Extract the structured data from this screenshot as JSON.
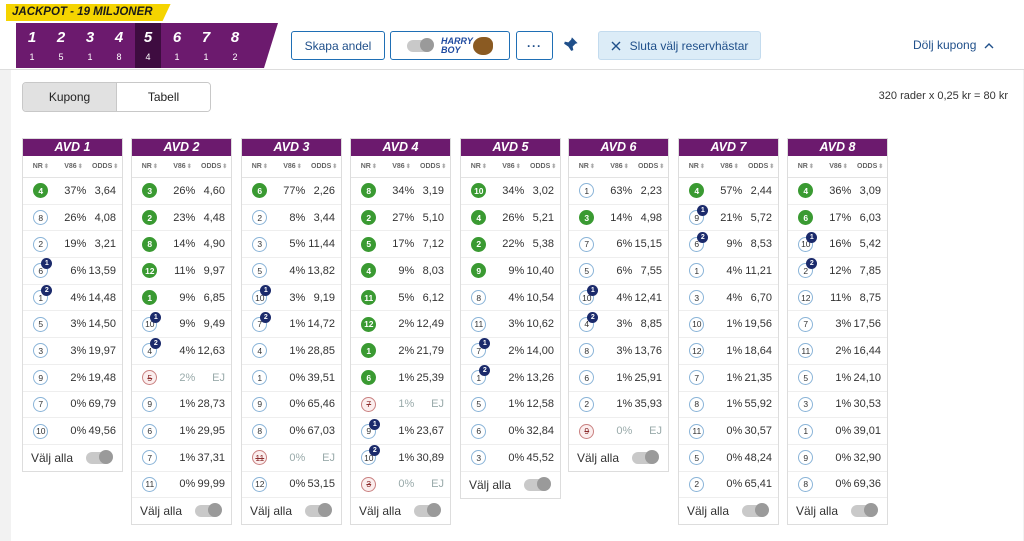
{
  "jackpot": "JACKPOT - 19 MILJONER",
  "legs": [
    {
      "num": "1",
      "count": "1"
    },
    {
      "num": "2",
      "count": "5"
    },
    {
      "num": "3",
      "count": "1"
    },
    {
      "num": "4",
      "count": "8"
    },
    {
      "num": "5",
      "count": "4",
      "active": true
    },
    {
      "num": "6",
      "count": "1"
    },
    {
      "num": "7",
      "count": "1"
    },
    {
      "num": "8",
      "count": "2"
    }
  ],
  "header": {
    "share_label": "Skapa andel",
    "harry_label": "HARRY BOY",
    "more_label": "···",
    "reserve_label": "Sluta välj reservhästar",
    "hide_label": "Dölj kupong"
  },
  "tabs": [
    "Kupong",
    "Tabell"
  ],
  "rows_info": "320 rader x 0,25 kr = 80 kr",
  "col_headers": {
    "nr": "NR",
    "v86": "V86",
    "odds": "ODDS"
  },
  "select_all": "Välj alla",
  "avds": [
    {
      "title": "AVD 1",
      "rows": [
        {
          "nr": "4",
          "pct": "37%",
          "odds": "3,64",
          "sel": true
        },
        {
          "nr": "8",
          "pct": "26%",
          "odds": "4,08"
        },
        {
          "nr": "2",
          "pct": "19%",
          "odds": "3,21"
        },
        {
          "nr": "6",
          "pct": "6%",
          "odds": "13,59",
          "badge": "1"
        },
        {
          "nr": "1",
          "pct": "4%",
          "odds": "14,48",
          "badge": "2"
        },
        {
          "nr": "5",
          "pct": "3%",
          "odds": "14,50"
        },
        {
          "nr": "3",
          "pct": "3%",
          "odds": "19,97"
        },
        {
          "nr": "9",
          "pct": "2%",
          "odds": "19,48"
        },
        {
          "nr": "7",
          "pct": "0%",
          "odds": "69,79"
        },
        {
          "nr": "10",
          "pct": "0%",
          "odds": "49,56"
        }
      ]
    },
    {
      "title": "AVD 2",
      "rows": [
        {
          "nr": "3",
          "pct": "26%",
          "odds": "4,60",
          "sel": true
        },
        {
          "nr": "2",
          "pct": "23%",
          "odds": "4,48",
          "sel": true
        },
        {
          "nr": "8",
          "pct": "14%",
          "odds": "4,90",
          "sel": true
        },
        {
          "nr": "12",
          "pct": "11%",
          "odds": "9,97",
          "sel": true
        },
        {
          "nr": "1",
          "pct": "9%",
          "odds": "6,85",
          "sel": true
        },
        {
          "nr": "10",
          "pct": "9%",
          "odds": "9,49",
          "badge": "1"
        },
        {
          "nr": "4",
          "pct": "4%",
          "odds": "12,63",
          "badge": "2"
        },
        {
          "nr": "5",
          "pct": "2%",
          "odds": "EJ",
          "scr": true
        },
        {
          "nr": "9",
          "pct": "1%",
          "odds": "28,73"
        },
        {
          "nr": "6",
          "pct": "1%",
          "odds": "29,95"
        },
        {
          "nr": "7",
          "pct": "1%",
          "odds": "37,31"
        },
        {
          "nr": "11",
          "pct": "0%",
          "odds": "99,99"
        }
      ]
    },
    {
      "title": "AVD 3",
      "rows": [
        {
          "nr": "6",
          "pct": "77%",
          "odds": "2,26",
          "sel": true
        },
        {
          "nr": "2",
          "pct": "8%",
          "odds": "3,44"
        },
        {
          "nr": "3",
          "pct": "5%",
          "odds": "11,44"
        },
        {
          "nr": "5",
          "pct": "4%",
          "odds": "13,82"
        },
        {
          "nr": "10",
          "pct": "3%",
          "odds": "9,19",
          "badge": "1"
        },
        {
          "nr": "7",
          "pct": "1%",
          "odds": "14,72",
          "badge": "2"
        },
        {
          "nr": "4",
          "pct": "1%",
          "odds": "28,85"
        },
        {
          "nr": "1",
          "pct": "0%",
          "odds": "39,51"
        },
        {
          "nr": "9",
          "pct": "0%",
          "odds": "65,46"
        },
        {
          "nr": "8",
          "pct": "0%",
          "odds": "67,03"
        },
        {
          "nr": "11",
          "pct": "0%",
          "odds": "EJ",
          "scr": true
        },
        {
          "nr": "12",
          "pct": "0%",
          "odds": "53,15"
        }
      ]
    },
    {
      "title": "AVD 4",
      "rows": [
        {
          "nr": "8",
          "pct": "34%",
          "odds": "3,19",
          "sel": true
        },
        {
          "nr": "2",
          "pct": "27%",
          "odds": "5,10",
          "sel": true
        },
        {
          "nr": "5",
          "pct": "17%",
          "odds": "7,12",
          "sel": true
        },
        {
          "nr": "4",
          "pct": "9%",
          "odds": "8,03",
          "sel": true
        },
        {
          "nr": "11",
          "pct": "5%",
          "odds": "6,12",
          "sel": true
        },
        {
          "nr": "12",
          "pct": "2%",
          "odds": "12,49",
          "sel": true
        },
        {
          "nr": "1",
          "pct": "2%",
          "odds": "21,79",
          "sel": true
        },
        {
          "nr": "6",
          "pct": "1%",
          "odds": "25,39",
          "sel": true
        },
        {
          "nr": "7",
          "pct": "1%",
          "odds": "EJ",
          "scr": true
        },
        {
          "nr": "9",
          "pct": "1%",
          "odds": "23,67",
          "badge": "1"
        },
        {
          "nr": "10",
          "pct": "1%",
          "odds": "30,89",
          "badge": "2"
        },
        {
          "nr": "3",
          "pct": "0%",
          "odds": "EJ",
          "scr": true
        }
      ]
    },
    {
      "title": "AVD 5",
      "rows": [
        {
          "nr": "10",
          "pct": "34%",
          "odds": "3,02",
          "sel": true
        },
        {
          "nr": "4",
          "pct": "26%",
          "odds": "5,21",
          "sel": true
        },
        {
          "nr": "2",
          "pct": "22%",
          "odds": "5,38",
          "sel": true
        },
        {
          "nr": "9",
          "pct": "9%",
          "odds": "10,40",
          "sel": true
        },
        {
          "nr": "8",
          "pct": "4%",
          "odds": "10,54"
        },
        {
          "nr": "11",
          "pct": "3%",
          "odds": "10,62"
        },
        {
          "nr": "7",
          "pct": "2%",
          "odds": "14,00",
          "badge": "1"
        },
        {
          "nr": "1",
          "pct": "2%",
          "odds": "13,26",
          "badge": "2"
        },
        {
          "nr": "5",
          "pct": "1%",
          "odds": "12,58"
        },
        {
          "nr": "6",
          "pct": "0%",
          "odds": "32,84"
        },
        {
          "nr": "3",
          "pct": "0%",
          "odds": "45,52"
        }
      ]
    },
    {
      "title": "AVD 6",
      "rows": [
        {
          "nr": "1",
          "pct": "63%",
          "odds": "2,23"
        },
        {
          "nr": "3",
          "pct": "14%",
          "odds": "4,98",
          "sel": true
        },
        {
          "nr": "7",
          "pct": "6%",
          "odds": "15,15"
        },
        {
          "nr": "5",
          "pct": "6%",
          "odds": "7,55"
        },
        {
          "nr": "10",
          "pct": "4%",
          "odds": "12,41",
          "badge": "1"
        },
        {
          "nr": "4",
          "pct": "3%",
          "odds": "8,85",
          "badge": "2"
        },
        {
          "nr": "8",
          "pct": "3%",
          "odds": "13,76"
        },
        {
          "nr": "6",
          "pct": "1%",
          "odds": "25,91"
        },
        {
          "nr": "2",
          "pct": "1%",
          "odds": "35,93"
        },
        {
          "nr": "9",
          "pct": "0%",
          "odds": "EJ",
          "scr": true
        }
      ]
    },
    {
      "title": "AVD 7",
      "rows": [
        {
          "nr": "4",
          "pct": "57%",
          "odds": "2,44",
          "sel": true
        },
        {
          "nr": "9",
          "pct": "21%",
          "odds": "5,72",
          "badge": "1"
        },
        {
          "nr": "6",
          "pct": "9%",
          "odds": "8,53",
          "badge": "2"
        },
        {
          "nr": "1",
          "pct": "4%",
          "odds": "11,21"
        },
        {
          "nr": "3",
          "pct": "4%",
          "odds": "6,70"
        },
        {
          "nr": "10",
          "pct": "1%",
          "odds": "19,56"
        },
        {
          "nr": "12",
          "pct": "1%",
          "odds": "18,64"
        },
        {
          "nr": "7",
          "pct": "1%",
          "odds": "21,35"
        },
        {
          "nr": "8",
          "pct": "1%",
          "odds": "55,92"
        },
        {
          "nr": "11",
          "pct": "0%",
          "odds": "30,57"
        },
        {
          "nr": "5",
          "pct": "0%",
          "odds": "48,24"
        },
        {
          "nr": "2",
          "pct": "0%",
          "odds": "65,41"
        }
      ]
    },
    {
      "title": "AVD 8",
      "rows": [
        {
          "nr": "4",
          "pct": "36%",
          "odds": "3,09",
          "sel": true
        },
        {
          "nr": "6",
          "pct": "17%",
          "odds": "6,03",
          "sel": true
        },
        {
          "nr": "10",
          "pct": "16%",
          "odds": "5,42",
          "badge": "1"
        },
        {
          "nr": "2",
          "pct": "12%",
          "odds": "7,85",
          "badge": "2"
        },
        {
          "nr": "12",
          "pct": "11%",
          "odds": "8,75"
        },
        {
          "nr": "7",
          "pct": "3%",
          "odds": "17,56"
        },
        {
          "nr": "11",
          "pct": "2%",
          "odds": "16,44"
        },
        {
          "nr": "5",
          "pct": "1%",
          "odds": "24,10"
        },
        {
          "nr": "3",
          "pct": "1%",
          "odds": "30,53"
        },
        {
          "nr": "1",
          "pct": "0%",
          "odds": "39,01"
        },
        {
          "nr": "9",
          "pct": "0%",
          "odds": "32,90"
        },
        {
          "nr": "8",
          "pct": "0%",
          "odds": "69,36"
        }
      ]
    }
  ]
}
